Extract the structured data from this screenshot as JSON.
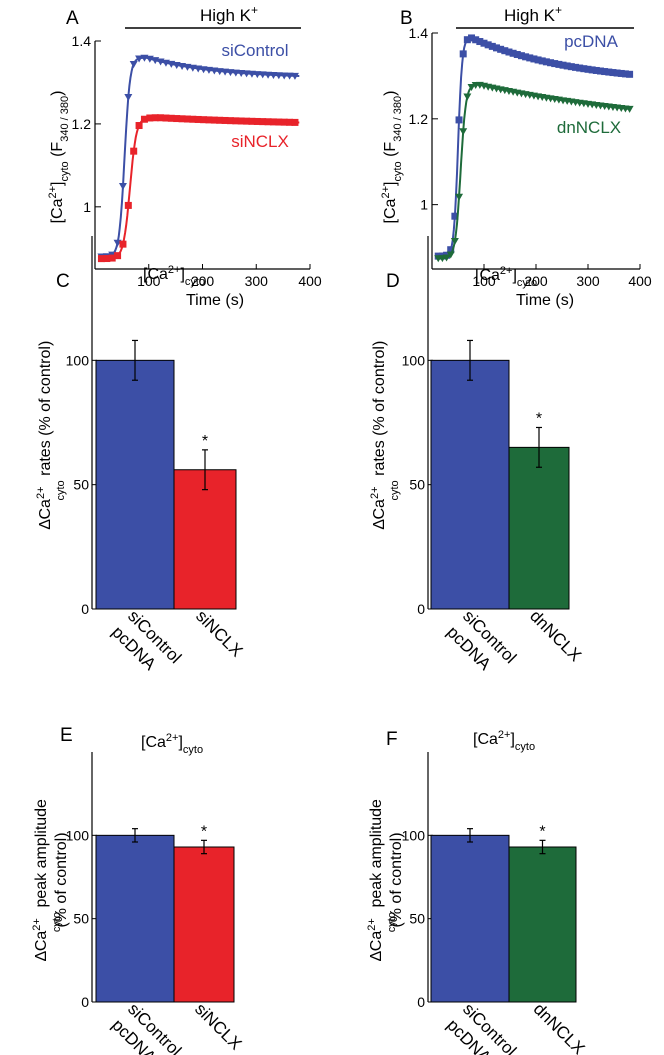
{
  "colors": {
    "blue": "#3c4fa6",
    "red": "#e8232a",
    "green": "#1e6b3a",
    "axis": "#000000"
  },
  "chart_data": [
    {
      "panel": "A",
      "type": "line",
      "title": "High K+",
      "title_main": "High K",
      "title_sup": "+",
      "xlabel": "Time (s)",
      "ylabel_parts": {
        "open": "[Ca",
        "sup": "2+",
        "close": "]",
        "sub": "cyto",
        "space": "  ",
        "f_open": "(F",
        "f_sub": "340 / 380",
        "f_close": ")"
      },
      "xlim": [
        0,
        400
      ],
      "ylim": [
        0.85,
        1.4
      ],
      "xticks": [
        100,
        200,
        300,
        400
      ],
      "xtick_labels": [
        "100",
        "200",
        "300",
        "400"
      ],
      "yticks": [
        1.0,
        1.2,
        1.4
      ],
      "ytick_labels": [
        "1",
        "1.2",
        "1.4"
      ],
      "stimulus_start": 50,
      "stimulus_end": 400,
      "series": [
        {
          "name": "siControl",
          "color": "blue",
          "marker": "triangle-down",
          "t0": 46,
          "tr": 55,
          "tau": 5,
          "pre": 0.88,
          "peak": 1.36,
          "tpeak": 95,
          "plateau": 1.31,
          "tdecay": 130,
          "marker_step": 10
        },
        {
          "name": "siNCLX",
          "color": "red",
          "marker": "square",
          "t0": 55,
          "tr": 65,
          "tau": 6,
          "pre": 0.875,
          "peak": 1.215,
          "tpeak": 120,
          "plateau": 1.195,
          "tdecay": 300,
          "marker_step": 10
        }
      ]
    },
    {
      "panel": "B",
      "type": "line",
      "title": "High K+",
      "title_main": "High K",
      "title_sup": "+",
      "xlabel": "Time (s)",
      "ylabel_parts": {
        "open": "[Ca",
        "sup": "2+",
        "close": "]",
        "sub": "cyto",
        "space": "  ",
        "f_open": "(F",
        "f_sub": "340 / 380",
        "f_close": ")"
      },
      "xlim": [
        0,
        400
      ],
      "ylim": [
        0.85,
        1.4
      ],
      "xticks": [
        100,
        200,
        300,
        400
      ],
      "xtick_labels": [
        "100",
        "200",
        "300",
        "400"
      ],
      "yticks": [
        1.0,
        1.2,
        1.4
      ],
      "ytick_labels": [
        "1",
        "1.2",
        "1.4"
      ],
      "stimulus_start": 45,
      "stimulus_end": 400,
      "series": [
        {
          "name": "pcDNA",
          "color": "blue",
          "marker": "square",
          "t0": 40,
          "tr": 50,
          "tau": 4,
          "pre": 0.88,
          "peak": 1.39,
          "tpeak": 75,
          "plateau": 1.28,
          "tdecay": 200,
          "marker_step": 8
        },
        {
          "name": "dnNCLX",
          "color": "green",
          "marker": "triangle-down",
          "t0": 44,
          "tr": 55,
          "tau": 5,
          "pre": 0.875,
          "peak": 1.28,
          "tpeak": 90,
          "plateau": 1.17,
          "tdecay": 400,
          "marker_step": 8
        }
      ]
    },
    {
      "panel": "C",
      "type": "bar",
      "title_parts": {
        "open": "[Ca",
        "sup": "2+",
        "close": "]",
        "sub": "cyto"
      },
      "ylabel_lines": [
        {
          "delta": "∆Ca",
          "sup": "2+",
          "sub": "cyto",
          "rest": " rates (% of control)"
        }
      ],
      "ylim": [
        0,
        150
      ],
      "yticks": [
        0,
        50,
        100
      ],
      "ytick_labels": [
        "0",
        "50",
        "100"
      ],
      "categories": [
        "siControl pcDNA",
        "siNCLX"
      ],
      "category_lines": [
        [
          "siControl",
          "pcDNA"
        ],
        [
          "siNCLX"
        ]
      ],
      "values": [
        100,
        56
      ],
      "errors": [
        8,
        8
      ],
      "colors": [
        "blue",
        "red"
      ],
      "significance": [
        "",
        "*"
      ]
    },
    {
      "panel": "D",
      "type": "bar",
      "title_parts": {
        "open": "[Ca",
        "sup": "2+",
        "close": "]",
        "sub": "cyto"
      },
      "ylabel_lines": [
        {
          "delta": "∆Ca",
          "sup": "2+",
          "sub": "cyto",
          "rest": " rates (% of control)"
        }
      ],
      "ylim": [
        0,
        150
      ],
      "yticks": [
        0,
        50,
        100
      ],
      "ytick_labels": [
        "0",
        "50",
        "100"
      ],
      "categories": [
        "siControl pcDNA",
        "dnNCLX"
      ],
      "category_lines": [
        [
          "siControl",
          "pcDNA"
        ],
        [
          "dnNCLX"
        ]
      ],
      "values": [
        100,
        65
      ],
      "errors": [
        8,
        8
      ],
      "colors": [
        "blue",
        "green"
      ],
      "significance": [
        "",
        "*"
      ]
    },
    {
      "panel": "E",
      "type": "bar",
      "title_parts": {
        "open": "[Ca",
        "sup": "2+",
        "close": "]",
        "sub": "cyto"
      },
      "ylabel_lines": [
        {
          "delta": "∆Ca",
          "sup": "2+",
          "sub": "cyto",
          "rest": " peak amplitude"
        },
        {
          "text": "(% of control)"
        }
      ],
      "ylim": [
        0,
        150
      ],
      "yticks": [
        0,
        50,
        100
      ],
      "ytick_labels": [
        "0",
        "50",
        "100"
      ],
      "categories": [
        "siControl pcDNA",
        "siNCLX"
      ],
      "category_lines": [
        [
          "siControl",
          "pcDNA"
        ],
        [
          "siNCLX"
        ]
      ],
      "values": [
        100,
        93
      ],
      "errors": [
        4,
        4
      ],
      "colors": [
        "blue",
        "red"
      ],
      "significance": [
        "",
        "*"
      ]
    },
    {
      "panel": "F",
      "type": "bar",
      "title_parts": {
        "open": "[Ca",
        "sup": "2+",
        "close": "]",
        "sub": "cyto"
      },
      "ylabel_lines": [
        {
          "delta": "∆Ca",
          "sup": "2+",
          "sub": "cyto",
          "rest": " peak amplitude"
        },
        {
          "text": "(% of control)"
        }
      ],
      "ylim": [
        0,
        150
      ],
      "yticks": [
        0,
        50,
        100
      ],
      "ytick_labels": [
        "0",
        "50",
        "100"
      ],
      "categories": [
        "siControl pcDNA",
        "dnNCLX"
      ],
      "category_lines": [
        [
          "siControl",
          "pcDNA"
        ],
        [
          "dnNCLX"
        ]
      ],
      "values": [
        100,
        93
      ],
      "errors": [
        4,
        4
      ],
      "colors": [
        "blue",
        "green"
      ],
      "significance": [
        "",
        "*"
      ]
    }
  ]
}
